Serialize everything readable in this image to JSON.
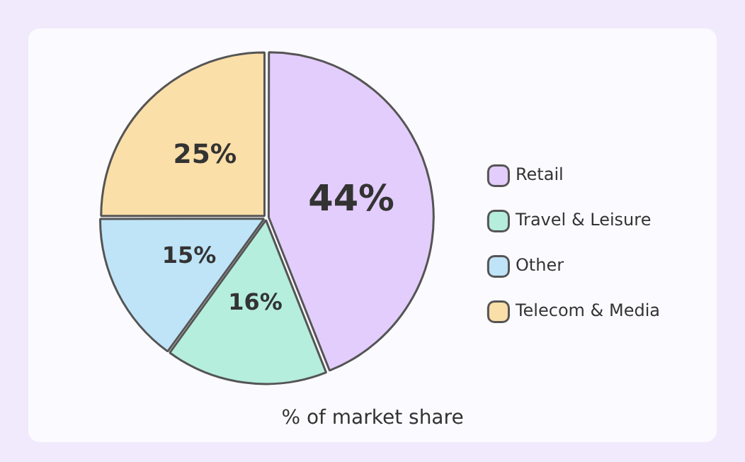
{
  "chart_data": {
    "type": "pie",
    "title": "% of market share",
    "categories": [
      "Retail",
      "Travel & Leisure",
      "Other",
      "Telecom & Media"
    ],
    "values": [
      44,
      16,
      15,
      25
    ],
    "value_labels": [
      "44%",
      "16%",
      "15%",
      "25%"
    ],
    "colors": [
      "#e3cdfc",
      "#b5eedc",
      "#bfe4f8",
      "#fbdfa8"
    ],
    "legend": "right"
  }
}
